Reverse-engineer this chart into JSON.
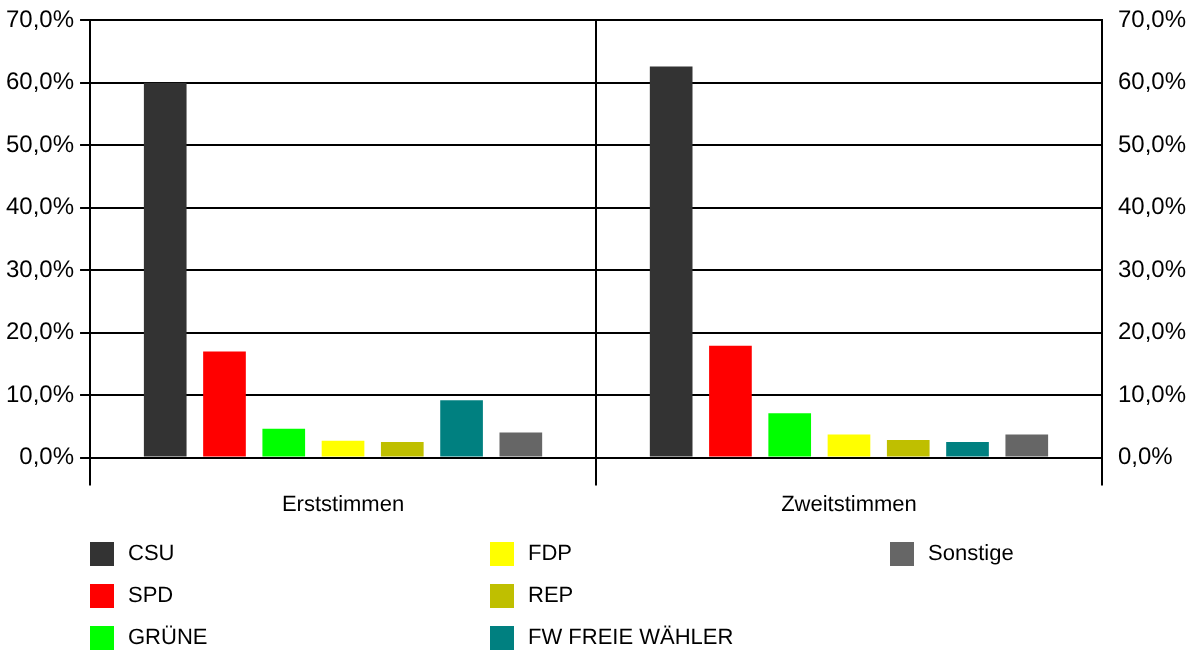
{
  "chart_data": {
    "type": "bar",
    "categories": [
      "Erststimmen",
      "Zweitstimmen"
    ],
    "series": [
      {
        "name": "CSU",
        "color": "#333333",
        "values": [
          60.0,
          62.6
        ]
      },
      {
        "name": "SPD",
        "color": "#ff0000",
        "values": [
          17.0,
          17.9
        ]
      },
      {
        "name": "GRÜNE",
        "color": "#00ff00",
        "values": [
          4.6,
          7.1
        ]
      },
      {
        "name": "FDP",
        "color": "#ffff00",
        "values": [
          2.7,
          3.7
        ]
      },
      {
        "name": "REP",
        "color": "#bfbf00",
        "values": [
          2.5,
          2.8
        ]
      },
      {
        "name": "FW FREIE WÄHLER",
        "color": "#008080",
        "values": [
          9.2,
          2.5
        ]
      },
      {
        "name": "Sonstige",
        "color": "#666666",
        "values": [
          4.0,
          3.7
        ]
      }
    ],
    "ylim": [
      0,
      70
    ],
    "yticks": [
      {
        "value": 0,
        "label": "0,0%"
      },
      {
        "value": 10,
        "label": "10,0%"
      },
      {
        "value": 20,
        "label": "20,0%"
      },
      {
        "value": 30,
        "label": "30,0%"
      },
      {
        "value": 40,
        "label": "40,0%"
      },
      {
        "value": 50,
        "label": "50,0%"
      },
      {
        "value": 60,
        "label": "60,0%"
      },
      {
        "value": 70,
        "label": "70,0%"
      }
    ],
    "y2lim": [
      0,
      70
    ],
    "y2ticks": [
      {
        "value": 0,
        "label": "0,0%"
      },
      {
        "value": 10,
        "label": "10,0%"
      },
      {
        "value": 20,
        "label": "20,0%"
      },
      {
        "value": 30,
        "label": "30,0%"
      },
      {
        "value": 40,
        "label": "40,0%"
      },
      {
        "value": 50,
        "label": "50,0%"
      },
      {
        "value": 60,
        "label": "60,0%"
      },
      {
        "value": 70,
        "label": "70,0%"
      }
    ],
    "grid": true,
    "legend": "bottom"
  }
}
